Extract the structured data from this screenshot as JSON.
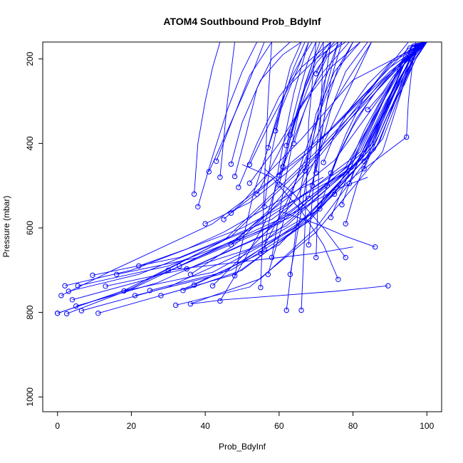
{
  "chart_data": {
    "type": "line",
    "title": "ATOM4 Southbound Prob_BdyInf",
    "xlabel": "Prob_BdyInf",
    "ylabel": "Pressure (mbar)",
    "xlim": [
      -4,
      104
    ],
    "ylim": [
      1035,
      160
    ],
    "y_reversed": true,
    "x_ticks": [
      0,
      20,
      40,
      60,
      80,
      100
    ],
    "y_ticks": [
      200,
      400,
      600,
      800,
      1000
    ],
    "grid": false,
    "legend": "none",
    "line_color": "#0000ff",
    "marker": "open-circle",
    "series": [
      {
        "x": [
          0,
          18,
          45,
          70,
          97,
          100
        ],
        "y": [
          802,
          748,
          630,
          420,
          170,
          160
        ]
      },
      {
        "x": [
          0,
          20,
          47,
          72,
          98,
          100
        ],
        "y": [
          802,
          743,
          620,
          410,
          168,
          160
        ]
      },
      {
        "x": [
          2.5,
          20,
          48,
          75,
          97,
          100
        ],
        "y": [
          803,
          745,
          628,
          440,
          175,
          160
        ]
      },
      {
        "x": [
          1,
          15,
          42,
          68,
          95,
          100
        ],
        "y": [
          760,
          700,
          590,
          420,
          175,
          160
        ]
      },
      {
        "x": [
          2,
          20,
          50,
          80,
          97,
          100
        ],
        "y": [
          737,
          700,
          600,
          460,
          190,
          160
        ]
      },
      {
        "x": [
          3,
          22,
          52,
          78,
          96,
          100
        ],
        "y": [
          750,
          710,
          605,
          455,
          180,
          160
        ]
      },
      {
        "x": [
          4,
          25,
          55,
          82,
          97,
          100
        ],
        "y": [
          770,
          720,
          610,
          440,
          175,
          160
        ]
      },
      {
        "x": [
          5,
          27,
          55,
          80,
          95,
          100
        ],
        "y": [
          785,
          730,
          620,
          445,
          180,
          160
        ]
      },
      {
        "x": [
          5.5,
          30,
          60,
          82,
          96,
          100
        ],
        "y": [
          737,
          690,
          590,
          440,
          170,
          160
        ]
      },
      {
        "x": [
          6.5,
          30,
          55,
          78,
          94,
          100
        ],
        "y": [
          796,
          740,
          640,
          470,
          200,
          160
        ]
      },
      {
        "x": [
          9.5,
          33,
          58,
          82,
          95,
          100
        ],
        "y": [
          712,
          670,
          580,
          420,
          170,
          160
        ]
      },
      {
        "x": [
          11,
          34,
          60,
          83,
          96,
          100
        ],
        "y": [
          802,
          745,
          640,
          430,
          170,
          160
        ]
      },
      {
        "x": [
          13,
          36,
          62,
          84,
          97,
          100
        ],
        "y": [
          738,
          695,
          595,
          420,
          170,
          160
        ]
      },
      {
        "x": [
          16,
          38,
          63,
          84,
          97,
          100
        ],
        "y": [
          710,
          670,
          575,
          410,
          170,
          160
        ]
      },
      {
        "x": [
          18,
          42,
          64,
          86,
          98,
          100
        ],
        "y": [
          749,
          705,
          600,
          415,
          165,
          160
        ]
      },
      {
        "x": [
          21,
          44,
          66,
          86,
          98,
          100
        ],
        "y": [
          760,
          710,
          590,
          400,
          165,
          160
        ]
      },
      {
        "x": [
          25,
          47,
          68,
          88,
          98,
          100
        ],
        "y": [
          748,
          700,
          585,
          390,
          165,
          160
        ]
      },
      {
        "x": [
          28,
          48,
          67,
          87,
          97,
          100
        ],
        "y": [
          760,
          710,
          590,
          400,
          165,
          160
        ]
      },
      {
        "x": [
          32,
          52,
          70,
          88,
          97,
          100
        ],
        "y": [
          783,
          740,
          610,
          420,
          170,
          160
        ]
      },
      {
        "x": [
          34,
          50,
          68,
          85,
          96,
          100
        ],
        "y": [
          748,
          700,
          580,
          400,
          165,
          160
        ]
      },
      {
        "x": [
          35,
          52,
          70,
          86,
          97,
          100
        ],
        "y": [
          697,
          650,
          560,
          390,
          165,
          160
        ]
      },
      {
        "x": [
          36,
          55,
          70,
          87,
          97,
          100
        ],
        "y": [
          780,
          720,
          600,
          400,
          165,
          160
        ]
      },
      {
        "x": [
          36,
          48,
          60,
          70,
          88,
          100
        ],
        "y": [
          710,
          640,
          540,
          440,
          250,
          160
        ]
      },
      {
        "x": [
          40,
          52,
          62,
          75,
          90,
          100
        ],
        "y": [
          590,
          540,
          470,
          360,
          220,
          160
        ]
      },
      {
        "x": [
          41,
          47,
          52,
          56
        ],
        "y": [
          467,
          350,
          250,
          160
        ]
      },
      {
        "x": [
          42,
          52,
          64,
          72,
          85
        ],
        "y": [
          737,
          650,
          540,
          400,
          160
        ]
      },
      {
        "x": [
          43,
          48,
          52,
          55,
          58
        ],
        "y": [
          442,
          330,
          240,
          200,
          160
        ]
      },
      {
        "x": [
          44,
          46,
          48
        ],
        "y": [
          480,
          300,
          160
        ]
      },
      {
        "x": [
          44,
          49,
          56,
          60,
          74
        ],
        "y": [
          773,
          700,
          590,
          480,
          160
        ]
      },
      {
        "x": [
          45,
          50,
          57,
          66,
          80,
          100
        ],
        "y": [
          580,
          540,
          470,
          390,
          250,
          160
        ]
      },
      {
        "x": [
          47,
          57,
          65,
          75,
          95
        ],
        "y": [
          640,
          560,
          480,
          380,
          160
        ]
      },
      {
        "x": [
          47,
          50,
          55,
          61,
          66
        ],
        "y": [
          449,
          350,
          250,
          190,
          160
        ]
      },
      {
        "x": [
          47,
          55,
          64,
          75,
          90,
          100
        ],
        "y": [
          565,
          510,
          440,
          360,
          230,
          160
        ]
      },
      {
        "x": [
          48,
          53,
          60,
          68
        ],
        "y": [
          713,
          520,
          330,
          160
        ]
      },
      {
        "x": [
          48,
          51,
          54,
          58,
          63
        ],
        "y": [
          478,
          380,
          270,
          200,
          160
        ]
      },
      {
        "x": [
          49,
          54,
          60,
          66,
          74
        ],
        "y": [
          504,
          400,
          290,
          220,
          160
        ]
      },
      {
        "x": [
          52,
          57,
          63,
          70,
          76
        ],
        "y": [
          450,
          360,
          260,
          200,
          160
        ]
      },
      {
        "x": [
          52,
          60,
          67,
          74,
          82
        ],
        "y": [
          494,
          400,
          300,
          220,
          160
        ]
      },
      {
        "x": [
          54,
          60,
          66,
          72,
          79
        ],
        "y": [
          520,
          420,
          310,
          230,
          160
        ]
      },
      {
        "x": [
          55,
          56,
          57,
          58
        ],
        "y": [
          741,
          500,
          300,
          160
        ]
      },
      {
        "x": [
          55,
          62,
          68,
          75,
          85
        ],
        "y": [
          660,
          540,
          420,
          300,
          160
        ]
      },
      {
        "x": [
          56,
          60,
          64,
          68
        ],
        "y": [
          650,
          450,
          280,
          160
        ]
      },
      {
        "x": [
          56,
          58,
          61,
          64,
          67
        ],
        "y": [
          550,
          420,
          300,
          220,
          160
        ]
      },
      {
        "x": [
          57,
          60,
          63,
          66,
          69
        ],
        "y": [
          410,
          320,
          250,
          200,
          160
        ]
      },
      {
        "x": [
          57,
          62,
          67,
          73,
          80
        ],
        "y": [
          710,
          560,
          420,
          280,
          160
        ]
      },
      {
        "x": [
          58,
          61,
          64,
          67,
          71
        ],
        "y": [
          670,
          520,
          380,
          260,
          160
        ]
      },
      {
        "x": [
          59,
          61,
          63,
          66
        ],
        "y": [
          370,
          290,
          220,
          160
        ]
      },
      {
        "x": [
          60,
          63,
          66,
          70,
          75
        ],
        "y": [
          498,
          390,
          290,
          210,
          160
        ]
      },
      {
        "x": [
          60,
          63,
          66,
          69,
          72
        ],
        "y": [
          475,
          380,
          290,
          210,
          160
        ]
      },
      {
        "x": [
          61,
          64,
          67,
          70,
          74
        ],
        "y": [
          455,
          360,
          270,
          200,
          160
        ]
      },
      {
        "x": [
          62,
          64,
          66,
          68,
          70
        ],
        "y": [
          405,
          330,
          260,
          200,
          160
        ]
      },
      {
        "x": [
          62,
          66,
          70,
          75,
          82
        ],
        "y": [
          795,
          500,
          330,
          230,
          160
        ]
      },
      {
        "x": [
          63,
          66,
          69,
          72,
          76
        ],
        "y": [
          710,
          560,
          400,
          260,
          160
        ]
      },
      {
        "x": [
          63,
          66,
          69,
          73,
          78
        ],
        "y": [
          380,
          310,
          240,
          190,
          160
        ]
      },
      {
        "x": [
          64,
          67,
          70,
          73,
          77
        ],
        "y": [
          400,
          320,
          250,
          195,
          160
        ]
      },
      {
        "x": [
          66,
          67,
          68,
          70
        ],
        "y": [
          795,
          600,
          350,
          160
        ]
      },
      {
        "x": [
          67,
          70,
          73,
          76
        ],
        "y": [
          465,
          360,
          260,
          160
        ]
      },
      {
        "x": [
          68,
          70,
          72,
          74
        ],
        "y": [
          640,
          420,
          280,
          160
        ]
      },
      {
        "x": [
          68,
          71,
          74,
          78,
          84
        ],
        "y": [
          530,
          420,
          320,
          230,
          160
        ]
      },
      {
        "x": [
          69,
          71,
          73,
          76,
          80
        ],
        "y": [
          500,
          400,
          300,
          220,
          160
        ]
      },
      {
        "x": [
          70,
          72,
          74,
          77
        ],
        "y": [
          470,
          350,
          250,
          160
        ]
      },
      {
        "x": [
          70,
          71,
          72
        ],
        "y": [
          670,
          400,
          160
        ]
      },
      {
        "x": [
          70,
          72,
          73,
          75
        ],
        "y": [
          235,
          200,
          180,
          160
        ]
      },
      {
        "x": [
          71,
          74,
          78,
          83,
          90,
          100
        ],
        "y": [
          555,
          470,
          380,
          290,
          210,
          160
        ]
      },
      {
        "x": [
          72,
          75,
          79,
          84,
          91,
          100
        ],
        "y": [
          445,
          380,
          320,
          260,
          200,
          160
        ]
      },
      {
        "x": [
          73,
          76,
          80,
          85,
          92,
          100
        ],
        "y": [
          500,
          430,
          360,
          290,
          215,
          160
        ]
      },
      {
        "x": [
          74,
          77,
          81,
          86,
          93,
          100
        ],
        "y": [
          470,
          410,
          340,
          280,
          210,
          160
        ]
      },
      {
        "x": [
          74,
          78,
          82,
          87,
          93,
          100
        ],
        "y": [
          575,
          490,
          400,
          310,
          220,
          160
        ]
      },
      {
        "x": [
          75,
          79,
          83,
          88,
          94,
          100
        ],
        "y": [
          520,
          450,
          370,
          290,
          210,
          160
        ]
      },
      {
        "x": [
          76,
          72,
          66,
          58,
          50
        ],
        "y": [
          722,
          640,
          560,
          480,
          450
        ]
      },
      {
        "x": [
          77,
          80,
          84,
          89,
          95,
          100
        ],
        "y": [
          545,
          470,
          390,
          300,
          210,
          160
        ]
      },
      {
        "x": [
          78,
          81,
          85,
          89,
          95,
          100
        ],
        "y": [
          590,
          500,
          410,
          320,
          220,
          160
        ]
      },
      {
        "x": [
          78,
          72,
          64,
          56
        ],
        "y": [
          670,
          600,
          520,
          460
        ]
      },
      {
        "x": [
          79,
          82,
          86,
          90,
          95,
          100
        ],
        "y": [
          495,
          430,
          360,
          290,
          210,
          160
        ]
      },
      {
        "x": [
          83,
          86,
          89,
          93,
          97,
          100
        ],
        "y": [
          460,
          400,
          340,
          270,
          200,
          160
        ]
      },
      {
        "x": [
          83,
          87,
          90,
          94,
          97,
          100
        ],
        "y": [
          442,
          380,
          320,
          260,
          200,
          160
        ]
      },
      {
        "x": [
          84,
          88,
          91,
          95,
          100
        ],
        "y": [
          320,
          280,
          240,
          200,
          160
        ]
      },
      {
        "x": [
          86,
          78,
          70,
          60
        ],
        "y": [
          645,
          620,
          590,
          560
        ]
      },
      {
        "x": [
          89.5,
          75,
          60,
          45,
          36
        ],
        "y": [
          737,
          750,
          760,
          770,
          780
        ]
      },
      {
        "x": [
          94.5,
          95,
          96,
          97
        ],
        "y": [
          385,
          300,
          220,
          160
        ]
      },
      {
        "x": [
          37,
          50,
          60,
          70,
          80,
          94.5
        ],
        "y": [
          735,
          680,
          620,
          560,
          480,
          385
        ]
      },
      {
        "x": [
          33,
          45,
          55,
          65,
          75,
          84
        ],
        "y": [
          690,
          640,
          600,
          560,
          510,
          480
        ]
      },
      {
        "x": [
          22,
          35,
          45,
          55,
          65,
          72
        ],
        "y": [
          690,
          650,
          610,
          560,
          510,
          480
        ]
      },
      {
        "x": [
          30,
          40,
          50,
          60,
          70,
          80
        ],
        "y": [
          700,
          690,
          680,
          670,
          660,
          645
        ]
      },
      {
        "x": [
          37,
          38,
          40,
          42,
          44
        ],
        "y": [
          520,
          400,
          300,
          220,
          160
        ]
      },
      {
        "x": [
          38,
          42,
          46,
          50,
          54
        ],
        "y": [
          550,
          430,
          320,
          230,
          160
        ]
      }
    ]
  }
}
